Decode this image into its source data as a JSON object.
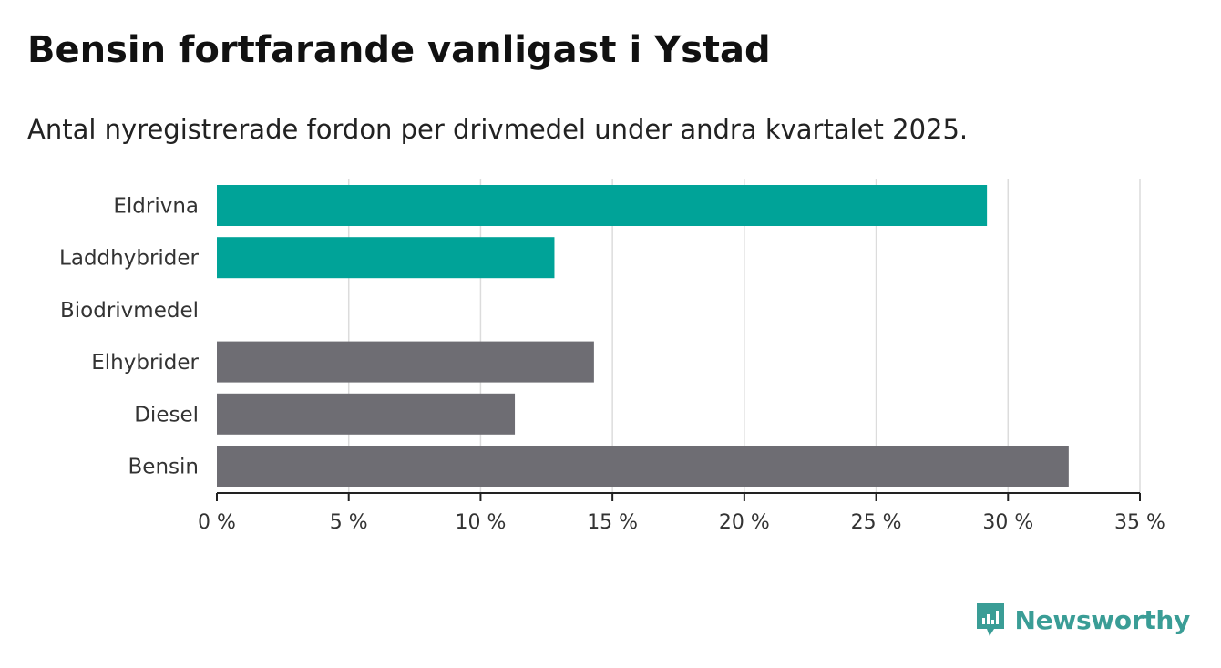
{
  "header": {
    "title": "Bensin fortfarande vanligast i Ystad",
    "subtitle": "Antal nyregistrerade fordon per drivmedel under andra kvartalet 2025."
  },
  "brand": {
    "name": "Newsworthy",
    "icon": "newsworthy-logo-icon",
    "color": "#3a9d96"
  },
  "chart_data": {
    "type": "bar",
    "orientation": "horizontal",
    "categories": [
      "Eldrivna",
      "Laddhybrider",
      "Biodrivmedel",
      "Elhybrider",
      "Diesel",
      "Bensin"
    ],
    "values": [
      29.2,
      12.8,
      0,
      14.3,
      11.3,
      32.3
    ],
    "bar_colors": [
      "#00a398",
      "#00a398",
      "#00a398",
      "#6e6d73",
      "#6e6d73",
      "#6e6d73"
    ],
    "xlim": [
      0,
      35
    ],
    "xticks": [
      0,
      5,
      10,
      15,
      20,
      25,
      30,
      35
    ],
    "xtick_labels": [
      "0 %",
      "5 %",
      "10 %",
      "15 %",
      "20 %",
      "25 %",
      "30 %",
      "35 %"
    ],
    "grid": true,
    "unit": "%"
  }
}
